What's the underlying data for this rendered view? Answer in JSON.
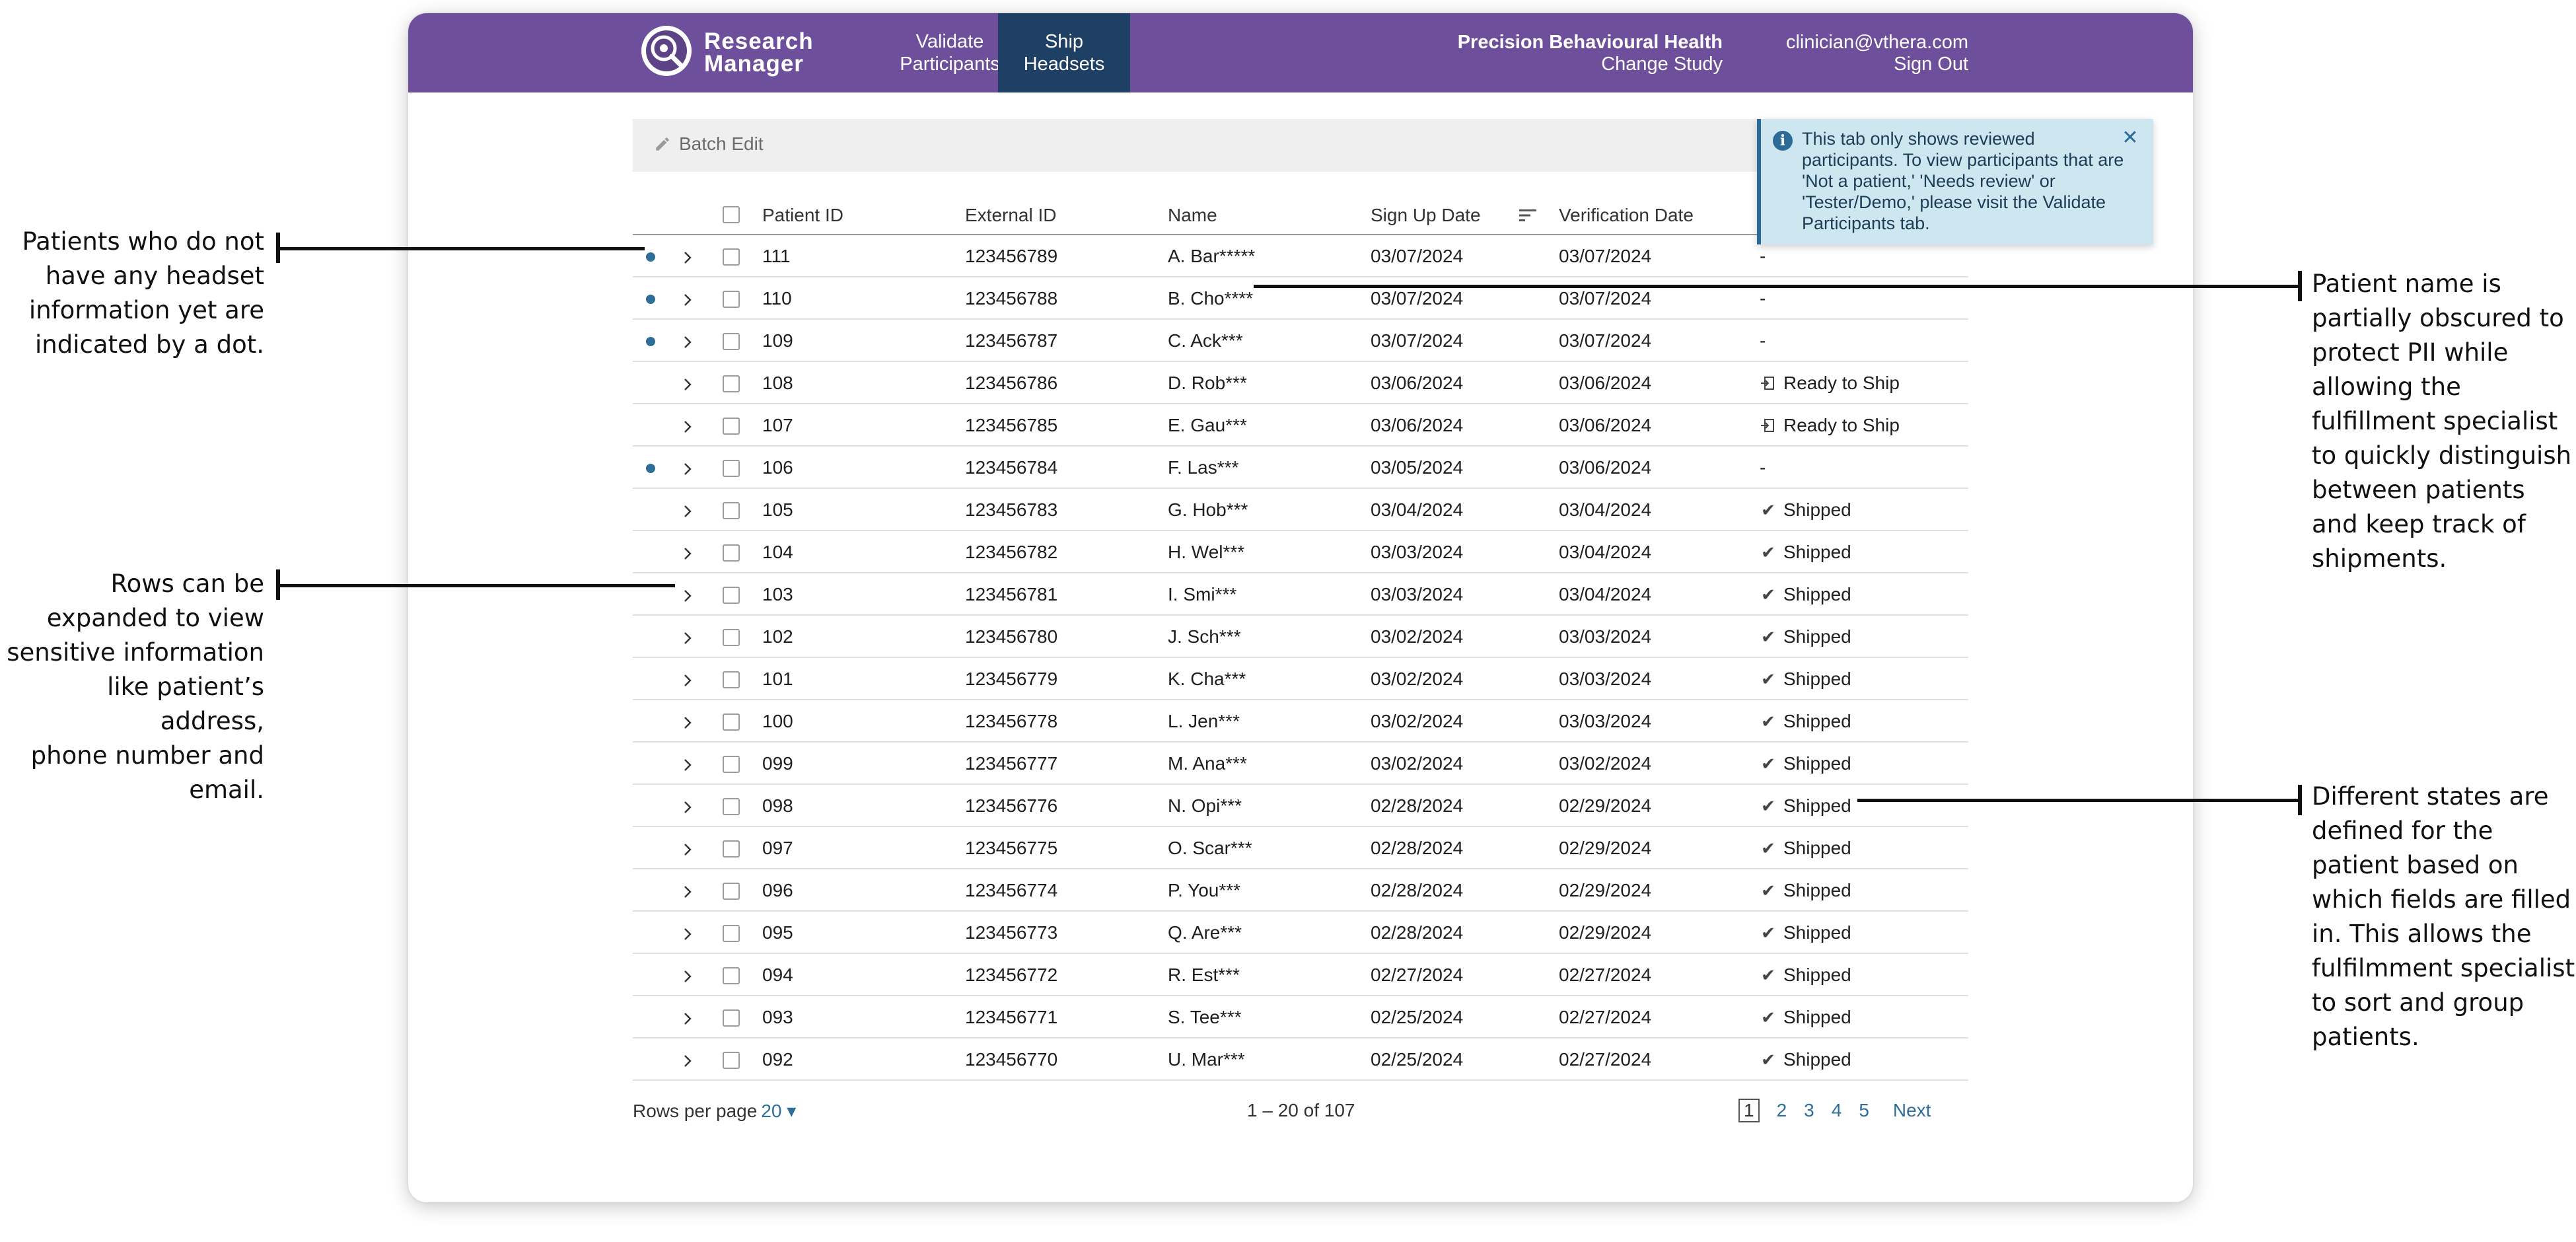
{
  "app": {
    "logo_line1": "Research",
    "logo_line2": "Manager",
    "nav": [
      {
        "line1": "Validate",
        "line2": "Participants"
      },
      {
        "line1": "Ship",
        "line2": "Headsets"
      }
    ],
    "study_name": "Precision Behavioural Health",
    "change_study": "Change Study",
    "user_email": "clinician@vthera.com",
    "sign_out": "Sign Out"
  },
  "toolbar": {
    "batch_edit": "Batch Edit"
  },
  "info_banner": {
    "text": "This tab only shows reviewed participants. To view participants that are 'Not a patient,' 'Needs review' or 'Tester/Demo,' please visit the Validate Participants tab."
  },
  "table": {
    "headers": {
      "patient_id": "Patient ID",
      "external_id": "External ID",
      "name": "Name",
      "sign_up_date": "Sign Up Date",
      "verification_date": "Verification Date"
    },
    "rows": [
      {
        "dot": true,
        "pid": "111",
        "ext": "123456789",
        "name": "A. Bar*****",
        "signup": "03/07/2024",
        "verified": "03/07/2024",
        "status": "-",
        "status_icon": ""
      },
      {
        "dot": true,
        "pid": "110",
        "ext": "123456788",
        "name": "B. Cho****",
        "signup": "03/07/2024",
        "verified": "03/07/2024",
        "status": "-",
        "status_icon": ""
      },
      {
        "dot": true,
        "pid": "109",
        "ext": "123456787",
        "name": "C. Ack***",
        "signup": "03/07/2024",
        "verified": "03/07/2024",
        "status": "-",
        "status_icon": ""
      },
      {
        "dot": false,
        "pid": "108",
        "ext": "123456786",
        "name": "D. Rob***",
        "signup": "03/06/2024",
        "verified": "03/06/2024",
        "status": "Ready to Ship",
        "status_icon": "ship-ready-icon"
      },
      {
        "dot": false,
        "pid": "107",
        "ext": "123456785",
        "name": "E. Gau***",
        "signup": "03/06/2024",
        "verified": "03/06/2024",
        "status": "Ready to Ship",
        "status_icon": "ship-ready-icon"
      },
      {
        "dot": true,
        "pid": "106",
        "ext": "123456784",
        "name": "F. Las***",
        "signup": "03/05/2024",
        "verified": "03/06/2024",
        "status": "-",
        "status_icon": ""
      },
      {
        "dot": false,
        "pid": "105",
        "ext": "123456783",
        "name": "G. Hob***",
        "signup": "03/04/2024",
        "verified": "03/04/2024",
        "status": "Shipped",
        "status_icon": "checkmark-icon"
      },
      {
        "dot": false,
        "pid": "104",
        "ext": "123456782",
        "name": "H. Wel***",
        "signup": "03/03/2024",
        "verified": "03/04/2024",
        "status": "Shipped",
        "status_icon": "checkmark-icon"
      },
      {
        "dot": false,
        "pid": "103",
        "ext": "123456781",
        "name": "I. Smi***",
        "signup": "03/03/2024",
        "verified": "03/04/2024",
        "status": "Shipped",
        "status_icon": "checkmark-icon"
      },
      {
        "dot": false,
        "pid": "102",
        "ext": "123456780",
        "name": "J. Sch***",
        "signup": "03/02/2024",
        "verified": "03/03/2024",
        "status": "Shipped",
        "status_icon": "checkmark-icon"
      },
      {
        "dot": false,
        "pid": "101",
        "ext": "123456779",
        "name": "K. Cha***",
        "signup": "03/02/2024",
        "verified": "03/03/2024",
        "status": "Shipped",
        "status_icon": "checkmark-icon"
      },
      {
        "dot": false,
        "pid": "100",
        "ext": "123456778",
        "name": "L. Jen***",
        "signup": "03/02/2024",
        "verified": "03/03/2024",
        "status": "Shipped",
        "status_icon": "checkmark-icon"
      },
      {
        "dot": false,
        "pid": "099",
        "ext": "123456777",
        "name": "M. Ana***",
        "signup": "03/02/2024",
        "verified": "03/02/2024",
        "status": "Shipped",
        "status_icon": "checkmark-icon"
      },
      {
        "dot": false,
        "pid": "098",
        "ext": "123456776",
        "name": "N. Opi***",
        "signup": "02/28/2024",
        "verified": "02/29/2024",
        "status": "Shipped",
        "status_icon": "checkmark-icon"
      },
      {
        "dot": false,
        "pid": "097",
        "ext": "123456775",
        "name": "O. Scar***",
        "signup": "02/28/2024",
        "verified": "02/29/2024",
        "status": "Shipped",
        "status_icon": "checkmark-icon"
      },
      {
        "dot": false,
        "pid": "096",
        "ext": "123456774",
        "name": "P. You***",
        "signup": "02/28/2024",
        "verified": "02/29/2024",
        "status": "Shipped",
        "status_icon": "checkmark-icon"
      },
      {
        "dot": false,
        "pid": "095",
        "ext": "123456773",
        "name": "Q. Are***",
        "signup": "02/28/2024",
        "verified": "02/29/2024",
        "status": "Shipped",
        "status_icon": "checkmark-icon"
      },
      {
        "dot": false,
        "pid": "094",
        "ext": "123456772",
        "name": "R. Est***",
        "signup": "02/27/2024",
        "verified": "02/27/2024",
        "status": "Shipped",
        "status_icon": "checkmark-icon"
      },
      {
        "dot": false,
        "pid": "093",
        "ext": "123456771",
        "name": "S. Tee***",
        "signup": "02/25/2024",
        "verified": "02/27/2024",
        "status": "Shipped",
        "status_icon": "checkmark-icon"
      },
      {
        "dot": false,
        "pid": "092",
        "ext": "123456770",
        "name": "U. Mar***",
        "signup": "02/25/2024",
        "verified": "02/27/2024",
        "status": "Shipped",
        "status_icon": "checkmark-icon"
      }
    ]
  },
  "pagination": {
    "rows_per_page_label": "Rows per page",
    "rows_per_page_value": "20 ▾",
    "range": "1 – 20 of 107",
    "pages": [
      "1",
      "2",
      "3",
      "4",
      "5"
    ],
    "current_page": "1",
    "next": "Next"
  },
  "annotations": {
    "dot_note": [
      "Patients who do not",
      "have any headset",
      "information yet are",
      "indicated by a dot."
    ],
    "expand_note": [
      "Rows can be",
      "expanded to view",
      "sensitive information",
      "like patient’s address,",
      "phone number and",
      "email."
    ],
    "name_note": [
      "Patient name is",
      "partially obscured to",
      "protect PII while",
      "allowing the",
      "fulfillment specialist",
      "to quickly distinguish",
      "between patients",
      "and keep track of",
      "shipments."
    ],
    "status_note": [
      "Different states are",
      "defined for the",
      "patient based on",
      "which fields are filled",
      "in. This allows the",
      "fulfilmment specialist",
      "to sort and group",
      "patients."
    ]
  },
  "colors": {
    "topbar": "#6e4f9b",
    "active_tab": "#1e4064",
    "accent": "#2e6e98",
    "info_bg": "#cde6f0"
  }
}
